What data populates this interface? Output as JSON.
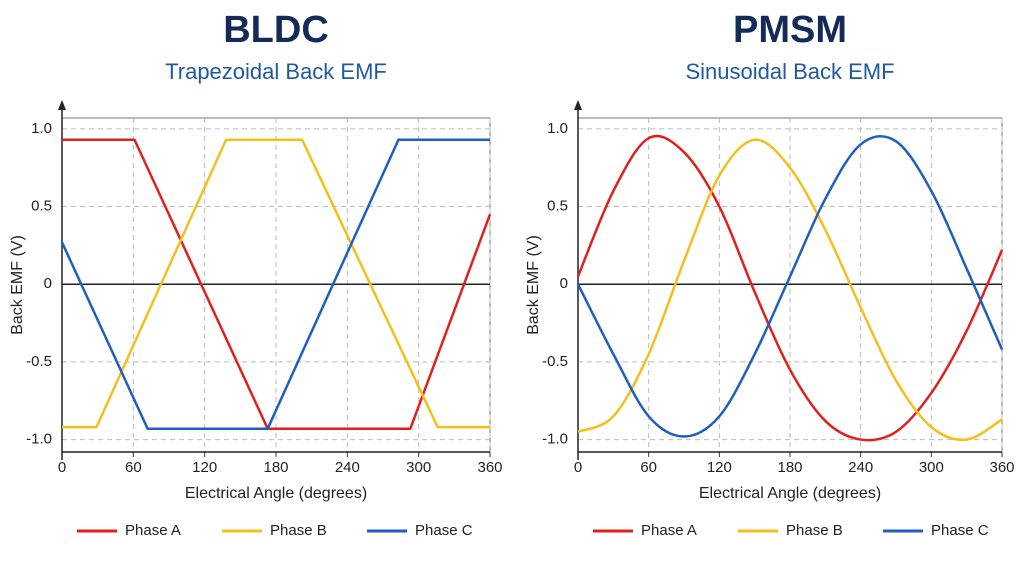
{
  "chart_data": [
    {
      "type": "line",
      "title": "BLDC",
      "subtitle": "Trapezoidal Back EMF",
      "xlabel": "Electrical Angle (degrees)",
      "ylabel": "Back EMF (V)",
      "xlim": [
        0,
        360
      ],
      "xticks": [
        0,
        60,
        120,
        180,
        240,
        300,
        360
      ],
      "ylim": [
        -1.08,
        1.07
      ],
      "yticks": [
        {
          "value": 1,
          "label": "1.0"
        },
        0.5,
        0,
        -0.5,
        {
          "value": -1,
          "label": "-1.0"
        }
      ],
      "grid": true,
      "smooth": false,
      "legend": "bottom",
      "series": [
        {
          "name": "Phase A",
          "color": "#e0201f",
          "x": [
            0,
            61,
            173,
            293,
            360
          ],
          "values": [
            0.93,
            0.93,
            -0.93,
            -0.93,
            0.45
          ]
        },
        {
          "name": "Phase B",
          "color": "#f5bf1b",
          "x": [
            0,
            29,
            138,
            202,
            316,
            360
          ],
          "values": [
            -0.92,
            -0.92,
            0.93,
            0.93,
            -0.92,
            -0.92
          ]
        },
        {
          "name": "Phase C",
          "color": "#1f5fbf",
          "x": [
            0,
            72,
            173,
            283,
            360
          ],
          "values": [
            0.27,
            -0.93,
            -0.93,
            0.93,
            0.93
          ]
        }
      ]
    },
    {
      "type": "line",
      "title": "PMSM",
      "subtitle": "Sinusoidal Back EMF",
      "xlabel": "Electrical Angle (degrees)",
      "ylabel": "Back EMF (V)",
      "xlim": [
        0,
        360
      ],
      "xticks": [
        0,
        60,
        120,
        180,
        240,
        300,
        360
      ],
      "ylim": [
        -1.08,
        1.07
      ],
      "yticks": [
        {
          "value": 1,
          "label": "1.0"
        },
        0.5,
        0,
        -0.5,
        {
          "value": -1,
          "label": "-1.0"
        }
      ],
      "grid": true,
      "smooth": true,
      "legend": "bottom",
      "series": [
        {
          "name": "Phase A",
          "color": "#e0201f",
          "x": [
            0,
            30,
            60,
            90,
            120,
            150,
            180,
            210,
            240,
            270,
            300,
            330,
            360
          ],
          "values": [
            0.05,
            0.6,
            0.94,
            0.85,
            0.5,
            -0.05,
            -0.55,
            -0.88,
            -1.0,
            -0.95,
            -0.7,
            -0.3,
            0.22
          ]
        },
        {
          "name": "Phase B",
          "color": "#f5bf1b",
          "x": [
            0,
            30,
            60,
            90,
            120,
            150,
            180,
            210,
            240,
            270,
            300,
            330,
            360
          ],
          "values": [
            -0.95,
            -0.85,
            -0.45,
            0.15,
            0.7,
            0.93,
            0.75,
            0.35,
            -0.15,
            -0.62,
            -0.92,
            -1.0,
            -0.87
          ]
        },
        {
          "name": "Phase C",
          "color": "#1f5fbf",
          "x": [
            0,
            30,
            60,
            90,
            120,
            150,
            180,
            210,
            240,
            270,
            300,
            330,
            360
          ],
          "values": [
            0,
            -0.45,
            -0.85,
            -0.98,
            -0.85,
            -0.45,
            0.05,
            0.55,
            0.9,
            0.92,
            0.6,
            0.1,
            -0.42
          ]
        }
      ]
    }
  ]
}
